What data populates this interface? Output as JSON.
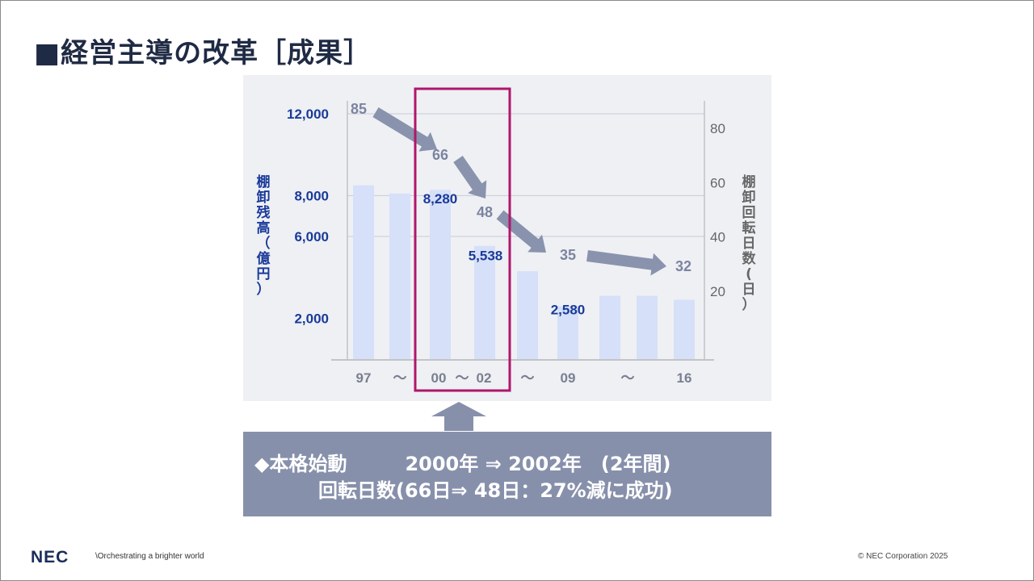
{
  "slide": {
    "title": "■経営主導の改革［成果］"
  },
  "chart_data": {
    "type": "bar",
    "categories": [
      "97",
      "〜",
      "00",
      "〜02",
      "〜",
      "09",
      "",
      "〜",
      "16"
    ],
    "x_tick_labels": [
      "97",
      "〜",
      "00",
      "〜",
      "02",
      "〜",
      "09",
      "〜",
      "16"
    ],
    "series": [
      {
        "values": [
          8500,
          8100,
          8280,
          5538,
          4300,
          2580,
          3100,
          3100,
          2900
        ],
        "axis": "left"
      },
      {
        "axis": "right",
        "points": [
          {
            "category_index": 0,
            "value": 85,
            "label": "85"
          },
          {
            "category_index": 2,
            "value": 66,
            "label": "66"
          },
          {
            "category_index": 3,
            "value": 48,
            "label": "48"
          },
          {
            "category_index": 5,
            "value": 35,
            "label": "35"
          },
          {
            "category_index": 8,
            "value": 32,
            "label": "32"
          }
        ]
      }
    ],
    "bar_value_labels": [
      {
        "index": 2,
        "text": "8,280"
      },
      {
        "index": 3,
        "text": "5,538"
      },
      {
        "index": 5,
        "text": "2,580"
      }
    ],
    "left_axis": {
      "label": "棚卸残高（億円）",
      "ticks": [
        "12,000",
        "8,000",
        "6,000",
        "2,000"
      ]
    },
    "right_axis": {
      "label": "棚卸回転日数(日）",
      "ticks": [
        "80",
        "60",
        "40",
        "20"
      ]
    },
    "highlight": {
      "from_index": 2,
      "to_index": 3
    },
    "colors": {
      "bar": "#d6e0f8",
      "trend_arrow": "#8a93ad",
      "highlight_border": "#b0166a",
      "left_axis_text": "#1a3a99",
      "right_axis_text": "#666666",
      "rate_label": "#7d84a0"
    },
    "grid": true
  },
  "info_box": {
    "line1": "◆本格始動　　　2000年 ⇒ 2002年　(2年間)",
    "line2": "回転日数(66日⇒ 48日：27%減に成功)"
  },
  "footer": {
    "logo": "NEC",
    "tagline": "\\Orchestrating a brighter world",
    "copyright": "© NEC Corporation 2025"
  }
}
